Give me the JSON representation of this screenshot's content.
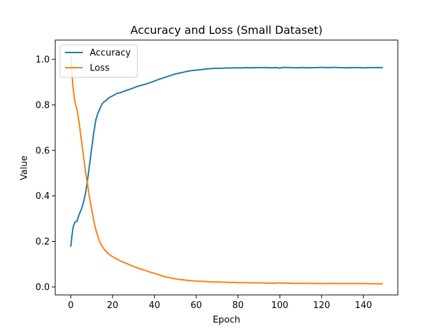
{
  "chart_data": {
    "type": "line",
    "title": "Accuracy and Loss (Small Dataset)",
    "xlabel": "Epoch",
    "ylabel": "Value",
    "xlim": [
      -7.45,
      156.45
    ],
    "ylim": [
      -0.035,
      1.085
    ],
    "xticks": [
      0,
      20,
      40,
      60,
      80,
      100,
      120,
      140
    ],
    "xtick_labels": [
      "0",
      "20",
      "40",
      "60",
      "80",
      "100",
      "120",
      "140"
    ],
    "yticks": [
      0.0,
      0.2,
      0.4,
      0.6,
      0.8,
      1.0
    ],
    "ytick_labels": [
      "0.0",
      "0.2",
      "0.4",
      "0.6",
      "0.8",
      "1.0"
    ],
    "grid": false,
    "legend_position": "upper-left",
    "series": [
      {
        "name": "Accuracy",
        "color": "#1f77b4",
        "x": [
          0,
          1,
          2,
          3,
          4,
          5,
          6,
          7,
          8,
          9,
          10,
          11,
          12,
          13,
          14,
          15,
          16,
          17,
          18,
          19,
          20,
          22,
          24,
          26,
          28,
          30,
          32,
          34,
          36,
          38,
          40,
          42,
          44,
          46,
          48,
          50,
          52,
          54,
          56,
          58,
          60,
          62,
          64,
          66,
          68,
          70,
          72,
          74,
          76,
          78,
          80,
          82,
          84,
          86,
          88,
          90,
          92,
          94,
          96,
          98,
          100,
          102,
          104,
          106,
          108,
          110,
          112,
          114,
          116,
          118,
          120,
          122,
          124,
          126,
          128,
          130,
          132,
          134,
          136,
          138,
          140,
          142,
          144,
          146,
          149
        ],
        "values": [
          0.18,
          0.26,
          0.285,
          0.29,
          0.32,
          0.34,
          0.37,
          0.41,
          0.47,
          0.54,
          0.61,
          0.68,
          0.735,
          0.765,
          0.785,
          0.805,
          0.815,
          0.82,
          0.83,
          0.835,
          0.84,
          0.85,
          0.855,
          0.862,
          0.868,
          0.875,
          0.882,
          0.887,
          0.892,
          0.898,
          0.905,
          0.912,
          0.918,
          0.924,
          0.93,
          0.936,
          0.94,
          0.944,
          0.948,
          0.951,
          0.953,
          0.955,
          0.957,
          0.959,
          0.96,
          0.961,
          0.961,
          0.962,
          0.962,
          0.963,
          0.963,
          0.963,
          0.964,
          0.963,
          0.964,
          0.964,
          0.964,
          0.964,
          0.963,
          0.964,
          0.962,
          0.965,
          0.964,
          0.964,
          0.963,
          0.964,
          0.964,
          0.963,
          0.964,
          0.964,
          0.965,
          0.964,
          0.964,
          0.965,
          0.964,
          0.964,
          0.963,
          0.964,
          0.964,
          0.964,
          0.963,
          0.964,
          0.964,
          0.964,
          0.964
        ]
      },
      {
        "name": "Loss",
        "color": "#ff7f0e",
        "x": [
          0,
          1,
          2,
          3,
          4,
          5,
          6,
          7,
          8,
          9,
          10,
          11,
          12,
          13,
          14,
          15,
          16,
          17,
          18,
          19,
          20,
          22,
          24,
          26,
          28,
          30,
          32,
          34,
          36,
          38,
          40,
          42,
          44,
          46,
          48,
          50,
          52,
          54,
          56,
          58,
          60,
          62,
          64,
          66,
          68,
          70,
          72,
          74,
          76,
          78,
          80,
          82,
          84,
          86,
          88,
          90,
          92,
          94,
          96,
          98,
          100,
          102,
          104,
          106,
          108,
          110,
          112,
          114,
          116,
          118,
          120,
          122,
          124,
          126,
          128,
          130,
          132,
          134,
          136,
          138,
          140,
          142,
          144,
          146,
          149
        ],
        "values": [
          1.01,
          0.88,
          0.81,
          0.78,
          0.72,
          0.65,
          0.58,
          0.51,
          0.45,
          0.39,
          0.34,
          0.29,
          0.25,
          0.22,
          0.195,
          0.178,
          0.165,
          0.155,
          0.146,
          0.139,
          0.133,
          0.123,
          0.113,
          0.106,
          0.098,
          0.09,
          0.083,
          0.077,
          0.071,
          0.065,
          0.06,
          0.054,
          0.048,
          0.043,
          0.039,
          0.036,
          0.033,
          0.031,
          0.029,
          0.027,
          0.026,
          0.025,
          0.024,
          0.023,
          0.022,
          0.022,
          0.021,
          0.021,
          0.02,
          0.02,
          0.019,
          0.019,
          0.019,
          0.018,
          0.018,
          0.018,
          0.018,
          0.017,
          0.017,
          0.017,
          0.018,
          0.017,
          0.017,
          0.016,
          0.016,
          0.016,
          0.016,
          0.016,
          0.016,
          0.015,
          0.015,
          0.015,
          0.015,
          0.016,
          0.015,
          0.015,
          0.015,
          0.015,
          0.015,
          0.015,
          0.015,
          0.015,
          0.014,
          0.014,
          0.014
        ]
      }
    ]
  }
}
